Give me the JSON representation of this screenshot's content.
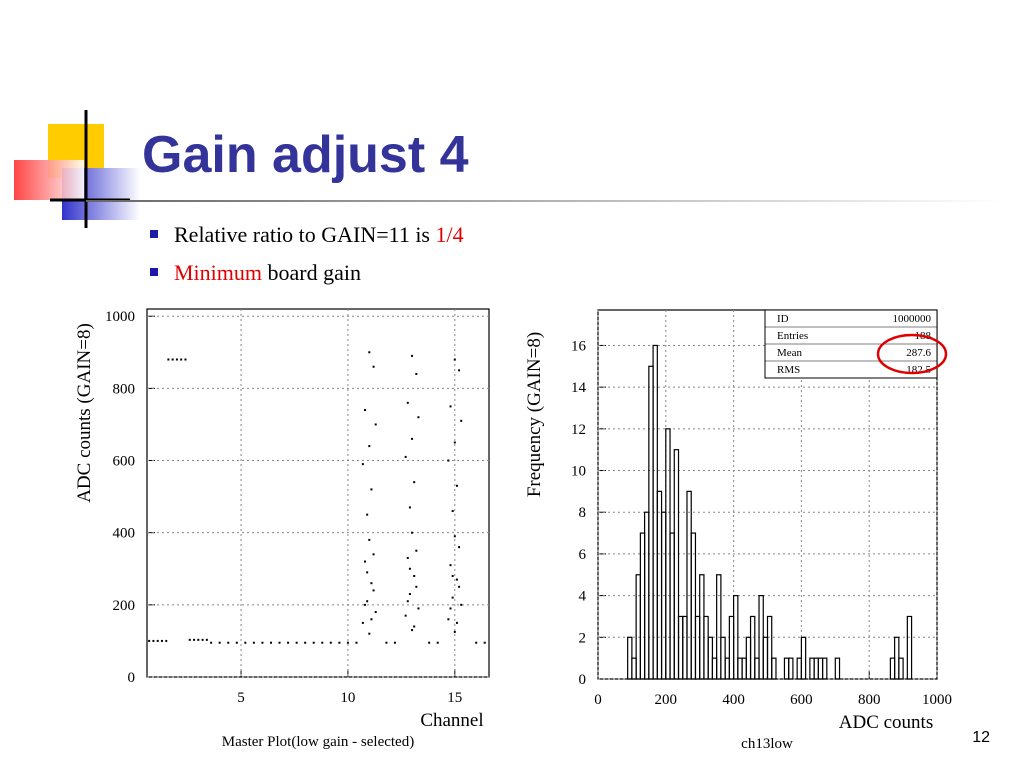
{
  "slide": {
    "title": "Gain adjust 4",
    "bullets": [
      [
        {
          "text": "Relative ratio to GAIN=11 is ",
          "color": "#000000"
        },
        {
          "text": "1/4",
          "color": "#e00000"
        }
      ],
      [
        {
          "text": "Minimum",
          "color": "#e00000"
        },
        {
          "text": " board gain",
          "color": "#000000"
        }
      ]
    ],
    "page_number": "12"
  },
  "chart_data": [
    {
      "type": "scatter",
      "title": "Master Plot(low gain - selected)",
      "x_label": "Channel",
      "y_label": "ADC counts  (GAIN=8)",
      "color": "#000000",
      "grid": true,
      "xlim": [
        0.6,
        16.6
      ],
      "ylim": [
        0,
        1020
      ],
      "xticks": [
        5,
        10,
        15
      ],
      "yticks": [
        0,
        200,
        400,
        600,
        800,
        1000
      ],
      "x": [
        1.6,
        1.8,
        2.0,
        2.2,
        2.4,
        0.7,
        0.9,
        1.1,
        1.3,
        1.5,
        2.6,
        2.8,
        3.0,
        3.2,
        3.4,
        3.6,
        4.0,
        4.4,
        4.8,
        5.2,
        5.6,
        6.0,
        6.4,
        6.8,
        7.2,
        7.6,
        8.0,
        8.4,
        8.8,
        9.2,
        9.6,
        10.0,
        10.4,
        11.8,
        12.2,
        13.8,
        14.2,
        16.0,
        16.4,
        10.7,
        10.9,
        11.1,
        11.3,
        10.8,
        11.0,
        11.2,
        10.9,
        11.1,
        10.7,
        11.0,
        11.3,
        10.8,
        11.2,
        11.0,
        10.9,
        11.2,
        11.1,
        10.8,
        11.0,
        12.7,
        12.9,
        13.1,
        13.3,
        12.8,
        13.0,
        13.2,
        12.9,
        13.1,
        12.7,
        13.0,
        13.3,
        12.8,
        13.2,
        13.0,
        12.9,
        13.2,
        13.1,
        12.8,
        13.0,
        14.7,
        14.9,
        15.1,
        15.3,
        14.8,
        15.0,
        15.2,
        14.9,
        15.1,
        14.7,
        15.0,
        15.3,
        14.8,
        15.2,
        15.0,
        14.9,
        15.2,
        15.1,
        14.8,
        15.0
      ],
      "values": [
        880,
        880,
        880,
        880,
        880,
        100,
        100,
        100,
        100,
        100,
        103,
        103,
        103,
        103,
        103,
        95,
        95,
        95,
        95,
        95,
        95,
        95,
        95,
        95,
        95,
        95,
        95,
        95,
        95,
        95,
        95,
        95,
        95,
        95,
        95,
        95,
        95,
        95,
        95,
        150,
        210,
        260,
        180,
        320,
        380,
        240,
        450,
        520,
        590,
        640,
        700,
        740,
        860,
        900,
        290,
        340,
        160,
        200,
        120,
        170,
        230,
        280,
        190,
        330,
        400,
        250,
        470,
        540,
        610,
        660,
        720,
        760,
        840,
        890,
        300,
        350,
        140,
        210,
        130,
        160,
        220,
        270,
        200,
        310,
        390,
        250,
        460,
        530,
        600,
        650,
        710,
        750,
        850,
        880,
        280,
        360,
        150,
        190,
        125
      ]
    },
    {
      "type": "histogram",
      "title": "ch13low",
      "x_label": "ADC counts",
      "y_label": "Frequency  (GAIN=8)",
      "color": "#000000",
      "grid": true,
      "xlim": [
        0,
        1000
      ],
      "ylim": [
        0,
        17.7
      ],
      "xticks": [
        0,
        200,
        400,
        600,
        800,
        1000
      ],
      "yticks": [
        0,
        2,
        4,
        6,
        8,
        10,
        12,
        14,
        16
      ],
      "bins": [
        0,
        12.5,
        25,
        37.5,
        50,
        62.5,
        75,
        87.5,
        100,
        112.5,
        125,
        137.5,
        150,
        162.5,
        175,
        187.5,
        200,
        212.5,
        225,
        237.5,
        250,
        262.5,
        275,
        287.5,
        300,
        312.5,
        325,
        337.5,
        350,
        362.5,
        375,
        387.5,
        400,
        412.5,
        425,
        437.5,
        450,
        462.5,
        475,
        487.5,
        500,
        512.5,
        525,
        537.5,
        550,
        562.5,
        575,
        587.5,
        600,
        612.5,
        625,
        637.5,
        650,
        662.5,
        675,
        687.5,
        700,
        712.5,
        725,
        737.5,
        750,
        762.5,
        775,
        787.5,
        800,
        812.5,
        825,
        837.5,
        850,
        862.5,
        875,
        887.5,
        900,
        912.5,
        925,
        937.5,
        950,
        962.5,
        975,
        987.5,
        1000
      ],
      "values": [
        0,
        0,
        0,
        0,
        0,
        0,
        0,
        2,
        1,
        5,
        7,
        8,
        15,
        16,
        9,
        8,
        12,
        7,
        11,
        3,
        3,
        9,
        7,
        3,
        5,
        3,
        2,
        1,
        5,
        2,
        1,
        3,
        4,
        1,
        1,
        2,
        3,
        1,
        4,
        2,
        3,
        1,
        0,
        0,
        1,
        1,
        0,
        1,
        2,
        0,
        1,
        1,
        1,
        1,
        0,
        0,
        1,
        0,
        0,
        0,
        0,
        0,
        0,
        0,
        0,
        0,
        0,
        0,
        0,
        1,
        2,
        1,
        0,
        3,
        0,
        0,
        0,
        0,
        0,
        0
      ],
      "stats": [
        {
          "label": "ID",
          "value": 1000000
        },
        {
          "label": "Entries",
          "value": 188
        },
        {
          "label": "Mean",
          "value": 287.6
        },
        {
          "label": "RMS",
          "value": 182.5
        }
      ]
    }
  ]
}
